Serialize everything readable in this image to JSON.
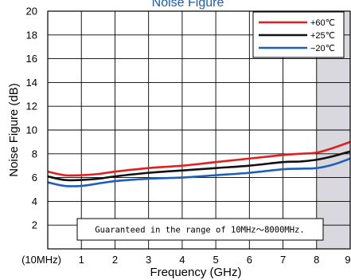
{
  "chart_data": {
    "type": "line",
    "title": "Noise Figure",
    "xlabel": "Frequency (GHz)",
    "ylabel": "Noise Figure (dB)",
    "xlim": [
      0,
      9
    ],
    "ylim": [
      0,
      20
    ],
    "x_ticks": [
      0,
      1,
      2,
      3,
      4,
      5,
      6,
      7,
      8,
      9
    ],
    "x_tick_labels": [
      "(10MHz)",
      "1",
      "2",
      "3",
      "4",
      "5",
      "6",
      "7",
      "8",
      "9"
    ],
    "y_ticks": [
      2,
      4,
      6,
      8,
      10,
      12,
      14,
      16,
      18,
      20
    ],
    "y_tick_labels": [
      "2",
      "4",
      "6",
      "8",
      "10",
      "12",
      "14",
      "16",
      "18",
      "20"
    ],
    "grid": true,
    "legend_position": "top-right",
    "shaded_region": {
      "x_from": 8,
      "x_to": 9,
      "color": "#d8d8de"
    },
    "annotation": "Guaranteed in the range of 10MHz～8000MHz.",
    "series": [
      {
        "name": "+60℃",
        "color": "#e02020",
        "x": [
          0,
          0.5,
          1,
          1.5,
          2,
          3,
          4,
          5,
          6,
          7,
          7.5,
          8,
          8.5,
          9
        ],
        "y": [
          6.5,
          6.2,
          6.2,
          6.3,
          6.5,
          6.8,
          7.0,
          7.3,
          7.6,
          7.9,
          8.0,
          8.1,
          8.5,
          9.0
        ]
      },
      {
        "name": "+25℃",
        "color": "#111111",
        "x": [
          0,
          0.5,
          1,
          1.5,
          2,
          3,
          4,
          5,
          6,
          7,
          7.5,
          8,
          8.5,
          9
        ],
        "y": [
          6.1,
          5.8,
          5.8,
          5.9,
          6.1,
          6.4,
          6.6,
          6.8,
          7.0,
          7.3,
          7.35,
          7.5,
          7.8,
          8.2
        ]
      },
      {
        "name": "−20℃",
        "color": "#1f5fb8",
        "x": [
          0,
          0.5,
          1,
          1.5,
          2,
          3,
          4,
          5,
          6,
          7,
          7.5,
          8,
          8.5,
          9
        ],
        "y": [
          5.6,
          5.3,
          5.3,
          5.5,
          5.7,
          5.9,
          6.0,
          6.2,
          6.4,
          6.7,
          6.75,
          6.8,
          7.1,
          7.6
        ]
      }
    ]
  }
}
